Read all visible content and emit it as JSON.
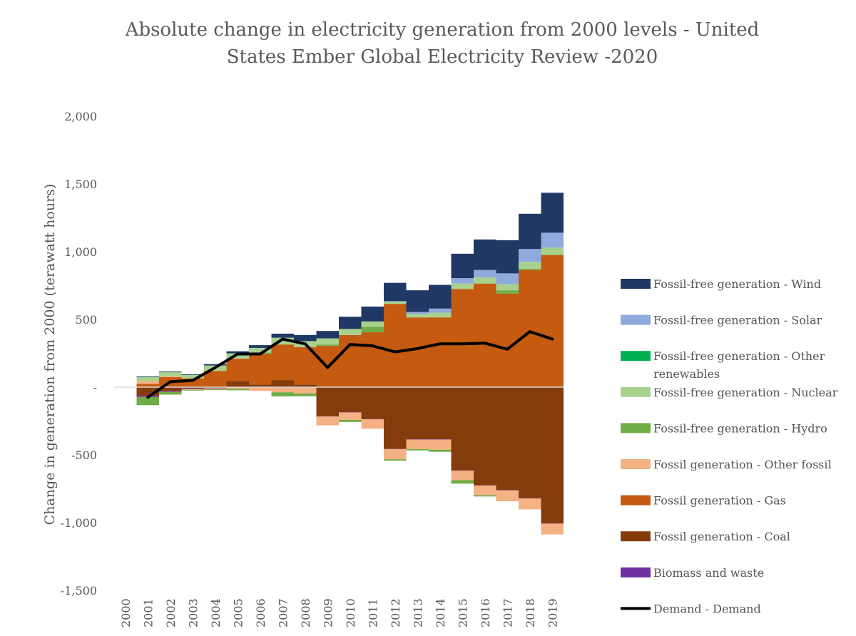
{
  "chart_data": {
    "type": "bar",
    "subtype": "stacked-bar-with-line",
    "title_lines": [
      "Absolute change in electricity generation from 2000 levels - United",
      "States Ember Global Electricity Review -2020"
    ],
    "ylabel": "Change in generation from 2000 (terawatt hours)",
    "xlabel": "",
    "ylim": [
      -1500,
      2000
    ],
    "yticks": [
      2000,
      1500,
      1000,
      500,
      0,
      -500,
      -1000,
      -1500
    ],
    "ytick_labels": [
      "2,000",
      "1,500",
      "1,000",
      "500",
      "-",
      "-500",
      "-1,000",
      "-1,500"
    ],
    "categories": [
      "2000",
      "2001",
      "2002",
      "2003",
      "2004",
      "2005",
      "2006",
      "2007",
      "2008",
      "2009",
      "2010",
      "2011",
      "2012",
      "2013",
      "2014",
      "2015",
      "2016",
      "2017",
      "2018",
      "2019"
    ],
    "legend_position": "right",
    "series": [
      {
        "name": "Fossil generation - Coal",
        "color": "#843C0C",
        "values": [
          0,
          -65,
          -30,
          -10,
          -5,
          45,
          20,
          50,
          20,
          -215,
          -185,
          -235,
          -455,
          -385,
          -385,
          -615,
          -725,
          -760,
          -820,
          -1005
        ]
      },
      {
        "name": "Fossil generation - Gas",
        "color": "#C55A11",
        "values": [
          0,
          25,
          75,
          65,
          120,
          165,
          225,
          265,
          275,
          305,
          385,
          405,
          615,
          515,
          515,
          725,
          765,
          690,
          865,
          975
        ]
      },
      {
        "name": "Biomass and waste",
        "color": "#7030A0",
        "values": [
          0,
          -8,
          -5,
          -5,
          -3,
          -3,
          -3,
          -3,
          -2,
          -2,
          -2,
          -2,
          -2,
          -2,
          -2,
          -2,
          -2,
          -2,
          -2,
          -2
        ]
      },
      {
        "name": "Fossil generation - Other fossil",
        "color": "#F4B183",
        "values": [
          0,
          20,
          5,
          -5,
          -8,
          -10,
          -25,
          -35,
          -45,
          -65,
          -55,
          -70,
          -75,
          -70,
          -75,
          -70,
          -70,
          -80,
          -80,
          -80
        ]
      },
      {
        "name": "Fossil-free generation - Hydro",
        "color": "#70AD47",
        "values": [
          0,
          -60,
          -20,
          -5,
          -5,
          -10,
          10,
          -30,
          -20,
          10,
          -15,
          40,
          -10,
          -10,
          -15,
          -25,
          -10,
          25,
          10,
          5
        ]
      },
      {
        "name": "Fossil-free generation - Nuclear",
        "color": "#A9D18E",
        "values": [
          0,
          30,
          30,
          25,
          40,
          40,
          35,
          50,
          45,
          45,
          45,
          40,
          15,
          25,
          35,
          40,
          45,
          45,
          50,
          50
        ]
      },
      {
        "name": "Fossil-free generation - Other renewables",
        "color": "#00B050",
        "values": [
          0,
          0,
          0,
          0,
          0,
          0,
          0,
          0,
          0,
          0,
          0,
          0,
          0,
          0,
          0,
          0,
          0,
          0,
          0,
          0
        ]
      },
      {
        "name": "Fossil-free generation - Solar",
        "color": "#8FAADC",
        "values": [
          0,
          0,
          0,
          0,
          0,
          0,
          0,
          0,
          0,
          0,
          0,
          0,
          5,
          15,
          30,
          40,
          55,
          80,
          95,
          110
        ]
      },
      {
        "name": "Fossil-free generation - Wind",
        "color": "#203864",
        "values": [
          0,
          5,
          5,
          5,
          10,
          15,
          20,
          30,
          45,
          55,
          90,
          110,
          135,
          160,
          175,
          180,
          225,
          245,
          260,
          295
        ]
      }
    ],
    "line": {
      "name": "Demand - Demand",
      "color": "#000000",
      "values": [
        null,
        -75,
        40,
        50,
        145,
        245,
        245,
        355,
        320,
        145,
        315,
        305,
        260,
        285,
        320,
        320,
        325,
        280,
        410,
        355
      ]
    },
    "legend": [
      {
        "label": "Fossil-free generation - Wind",
        "color": "#203864",
        "kind": "box"
      },
      {
        "label": "Fossil-free generation - Solar",
        "color": "#8FAADC",
        "kind": "box"
      },
      {
        "label": "Fossil-free generation - Other renewables",
        "color": "#00B050",
        "kind": "box"
      },
      {
        "label": "Fossil-free generation - Nuclear",
        "color": "#A9D18E",
        "kind": "box"
      },
      {
        "label": "Fossil-free generation - Hydro",
        "color": "#70AD47",
        "kind": "box"
      },
      {
        "label": "Fossil generation - Other fossil",
        "color": "#F4B183",
        "kind": "box"
      },
      {
        "label": "Fossil generation - Gas",
        "color": "#C55A11",
        "kind": "box"
      },
      {
        "label": "Fossil generation - Coal",
        "color": "#843C0C",
        "kind": "box"
      },
      {
        "label": "Biomass and waste",
        "color": "#7030A0",
        "kind": "box"
      },
      {
        "label": "Demand - Demand",
        "color": "#000000",
        "kind": "line"
      }
    ]
  }
}
